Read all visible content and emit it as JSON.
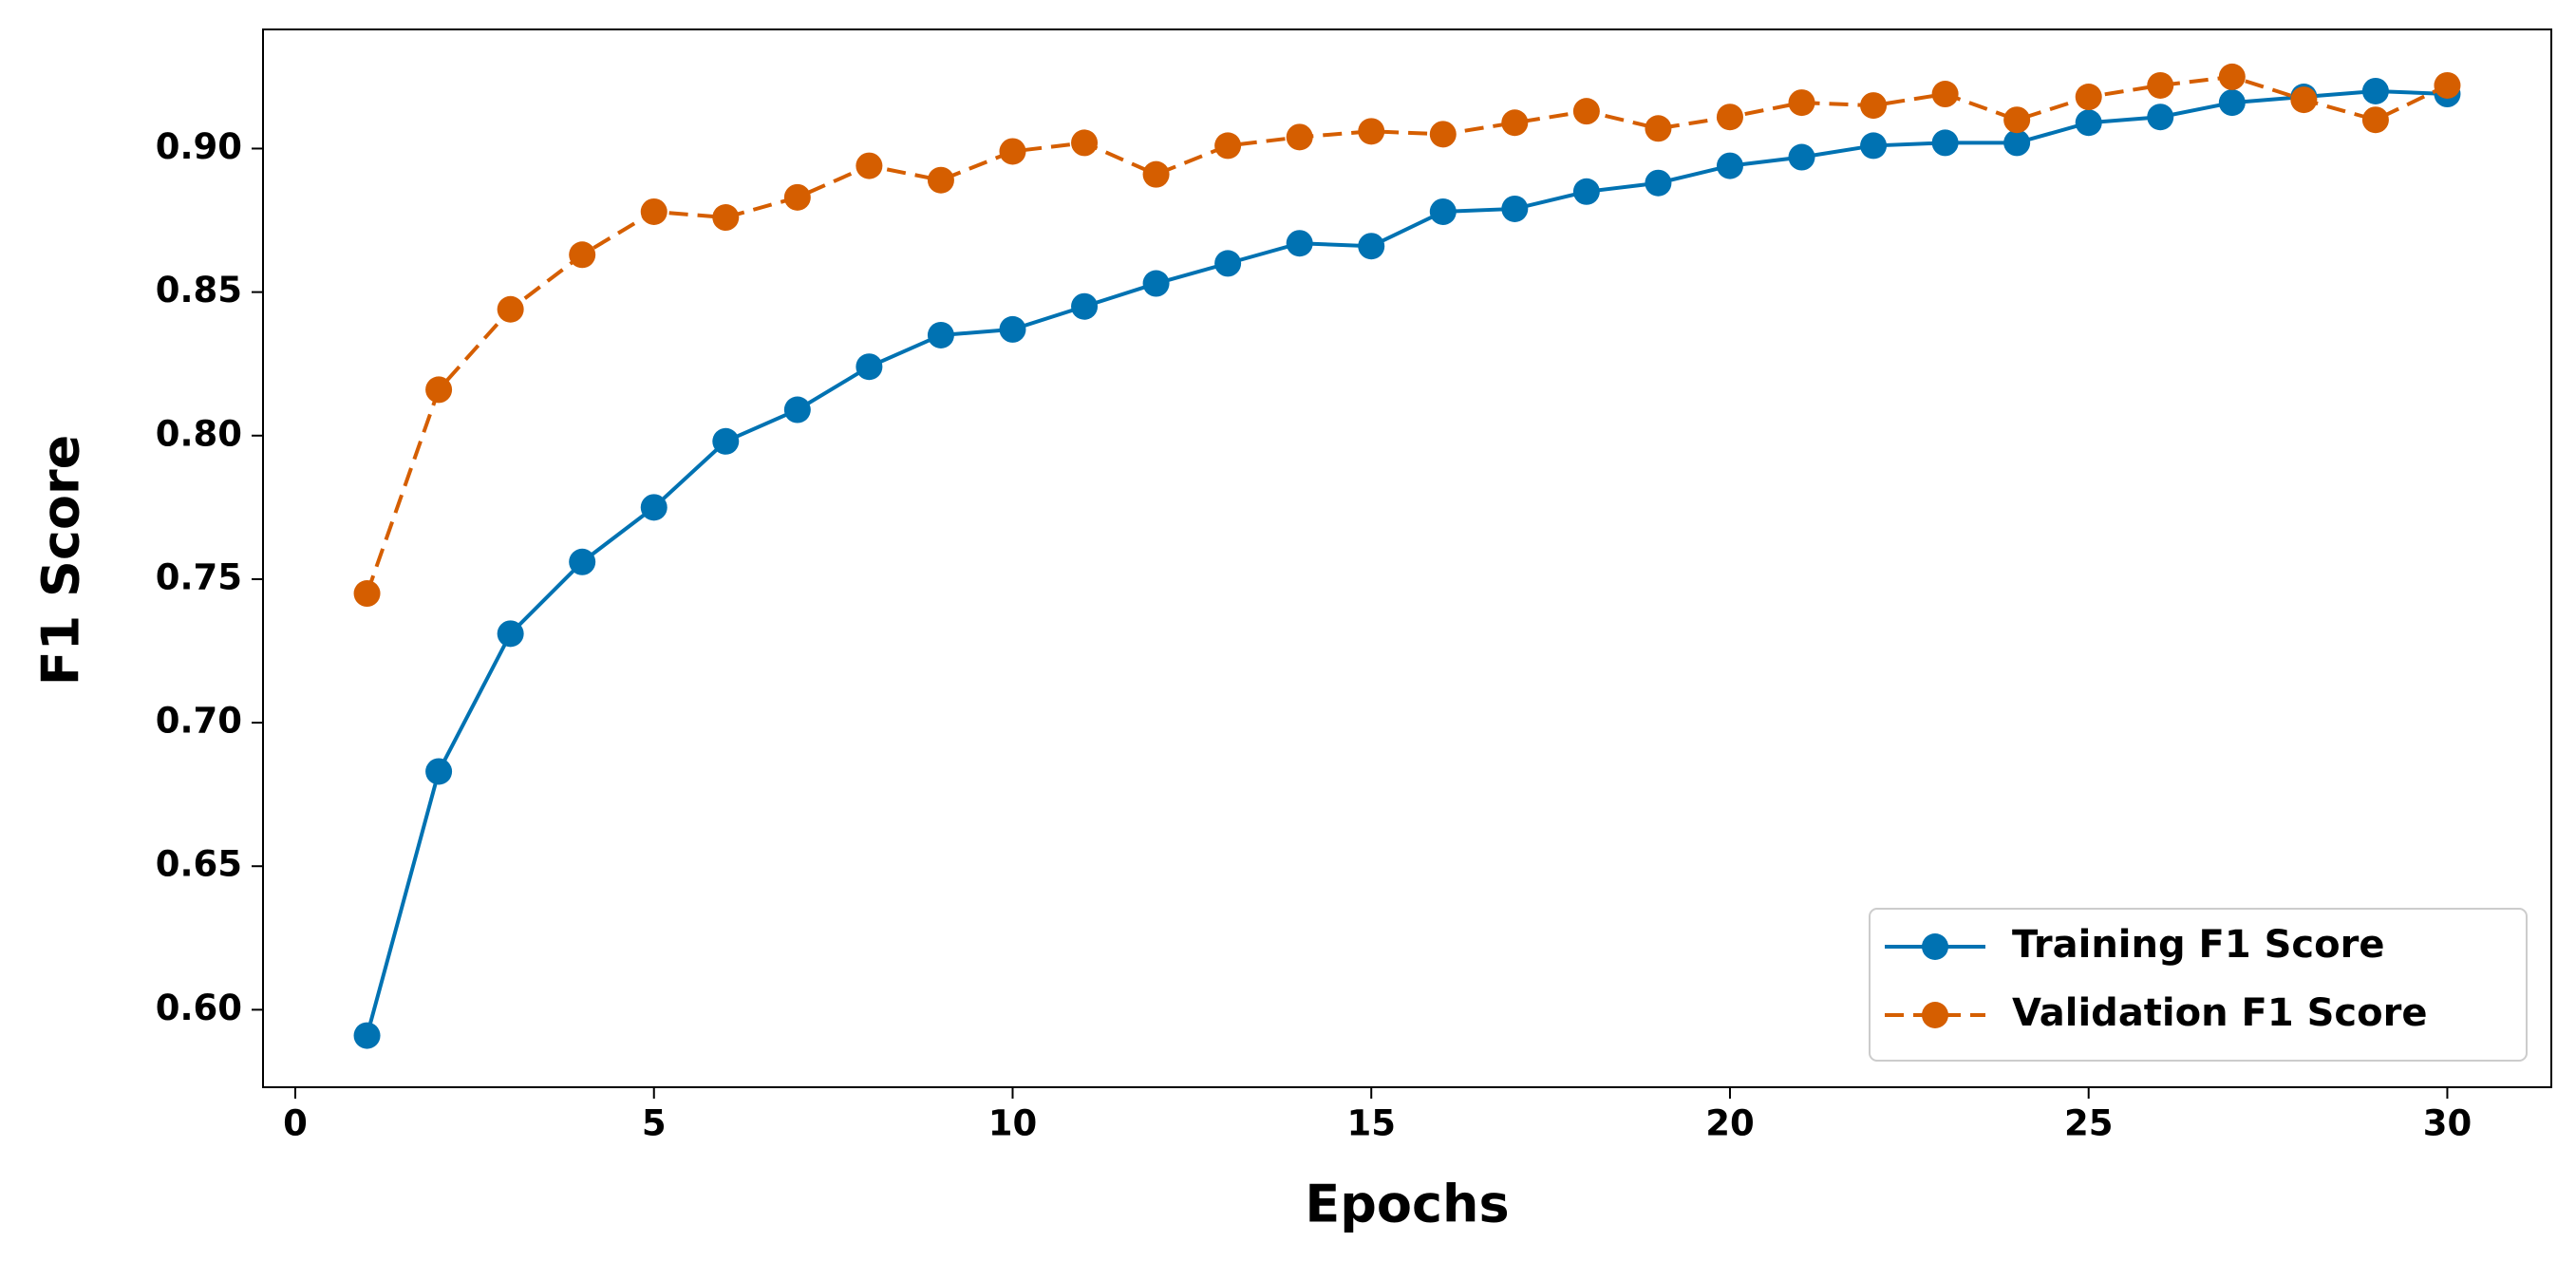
{
  "chart_data": {
    "type": "line",
    "xlabel": "Epochs",
    "ylabel": "F1 Score",
    "x": [
      1,
      2,
      3,
      4,
      5,
      6,
      7,
      8,
      9,
      10,
      11,
      12,
      13,
      14,
      15,
      16,
      17,
      18,
      19,
      20,
      21,
      22,
      23,
      24,
      25,
      26,
      27,
      28,
      29,
      30
    ],
    "series": [
      {
        "name": "Training F1 Score",
        "color": "#0072b2",
        "linestyle": "solid",
        "values": [
          0.591,
          0.683,
          0.731,
          0.756,
          0.775,
          0.798,
          0.809,
          0.824,
          0.835,
          0.837,
          0.845,
          0.853,
          0.86,
          0.867,
          0.866,
          0.878,
          0.879,
          0.885,
          0.888,
          0.894,
          0.897,
          0.901,
          0.902,
          0.902,
          0.909,
          0.911,
          0.916,
          0.918,
          0.92,
          0.919
        ]
      },
      {
        "name": "Validation F1 Score",
        "color": "#d55e00",
        "linestyle": "dashed",
        "values": [
          0.745,
          0.816,
          0.844,
          0.863,
          0.878,
          0.876,
          0.883,
          0.894,
          0.889,
          0.899,
          0.902,
          0.891,
          0.901,
          0.904,
          0.906,
          0.905,
          0.909,
          0.913,
          0.907,
          0.911,
          0.916,
          0.915,
          0.919,
          0.91,
          0.918,
          0.922,
          0.925,
          0.917,
          0.91,
          0.922
        ]
      }
    ],
    "xlim": [
      -0.45,
      31.45
    ],
    "xticks": [
      0,
      5,
      10,
      15,
      20,
      25,
      30
    ],
    "ylim": [
      0.573,
      0.9415
    ],
    "yticks": [
      {
        "value": 0.6,
        "label": "0.60"
      },
      {
        "value": 0.65,
        "label": "0.65"
      },
      {
        "value": 0.7,
        "label": "0.70"
      },
      {
        "value": 0.75,
        "label": "0.75"
      },
      {
        "value": 0.8,
        "label": "0.80"
      },
      {
        "value": 0.85,
        "label": "0.85"
      },
      {
        "value": 0.9,
        "label": "0.90"
      }
    ],
    "grid": false,
    "legend": "lower right"
  }
}
